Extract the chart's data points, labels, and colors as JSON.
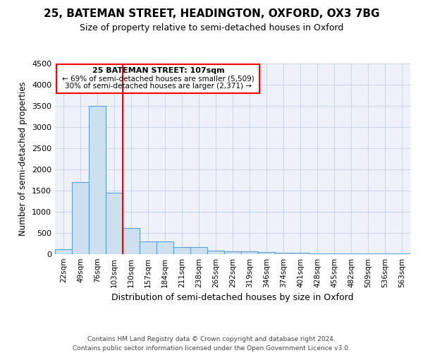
{
  "title": "25, BATEMAN STREET, HEADINGTON, OXFORD, OX3 7BG",
  "subtitle": "Size of property relative to semi-detached houses in Oxford",
  "xlabel": "Distribution of semi-detached houses by size in Oxford",
  "ylabel": "Number of semi-detached properties",
  "categories": [
    "22sqm",
    "49sqm",
    "76sqm",
    "103sqm",
    "130sqm",
    "157sqm",
    "184sqm",
    "211sqm",
    "238sqm",
    "265sqm",
    "292sqm",
    "319sqm",
    "346sqm",
    "374sqm",
    "401sqm",
    "428sqm",
    "455sqm",
    "482sqm",
    "509sqm",
    "536sqm",
    "563sqm"
  ],
  "values": [
    120,
    1700,
    3500,
    1450,
    620,
    300,
    300,
    160,
    160,
    80,
    60,
    60,
    50,
    30,
    30,
    20,
    20,
    20,
    20,
    20,
    20
  ],
  "bar_color": "#cce0f0",
  "bar_edge_color": "#5a9fd4",
  "ylim": [
    0,
    4500
  ],
  "yticks": [
    0,
    500,
    1000,
    1500,
    2000,
    2500,
    3000,
    3500,
    4000,
    4500
  ],
  "red_line_x": 3.5,
  "annotation_text_line1": "25 BATEMAN STREET: 107sqm",
  "annotation_text_line2": "← 69% of semi-detached houses are smaller (5,509)",
  "annotation_text_line3": "30% of semi-detached houses are larger (2,371) →",
  "footer_line1": "Contains HM Land Registry data © Crown copyright and database right 2024.",
  "footer_line2": "Contains public sector information licensed under the Open Government Licence v3.0.",
  "background_color": "#eef2f8",
  "grid_color": "#c8d4e4"
}
